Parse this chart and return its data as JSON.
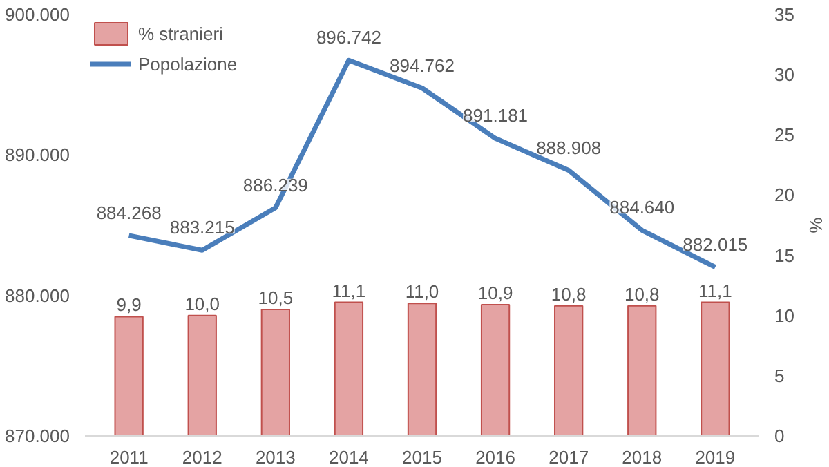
{
  "chart_data": {
    "type": "bar",
    "categories": [
      "2011",
      "2012",
      "2013",
      "2014",
      "2015",
      "2016",
      "2017",
      "2018",
      "2019"
    ],
    "y2label": "%",
    "ylim": [
      870000,
      900000
    ],
    "yticks": [
      {
        "value": 870000,
        "label": "870.000"
      },
      {
        "value": 880000,
        "label": "880.000"
      },
      {
        "value": 890000,
        "label": "890.000"
      },
      {
        "value": 900000,
        "label": "900.000"
      }
    ],
    "y2lim": [
      0,
      35
    ],
    "y2ticks": [
      0,
      5,
      10,
      15,
      20,
      25,
      30,
      35
    ],
    "grid": false,
    "legend": "top left",
    "series": [
      {
        "name": "% stranieri",
        "axis": "y2",
        "color": "#e4a3a3",
        "values": [
          9.9,
          10.0,
          10.5,
          11.1,
          11.0,
          10.9,
          10.8,
          10.8,
          11.1
        ],
        "value_labels": [
          "9,9",
          "10,0",
          "10,5",
          "11,1",
          "11,0",
          "10,9",
          "10,8",
          "10,8",
          "11,1"
        ]
      },
      {
        "name": "Popolazione",
        "type": "line",
        "color": "#4a7ebb",
        "values": [
          884268,
          883215,
          886239,
          896742,
          894762,
          891181,
          888908,
          884640,
          882015
        ],
        "value_labels": [
          "884.268",
          "883.215",
          "886.239",
          "896.742",
          "894.762",
          "891.181",
          "888.908",
          "884.640",
          "882.015"
        ]
      }
    ]
  }
}
